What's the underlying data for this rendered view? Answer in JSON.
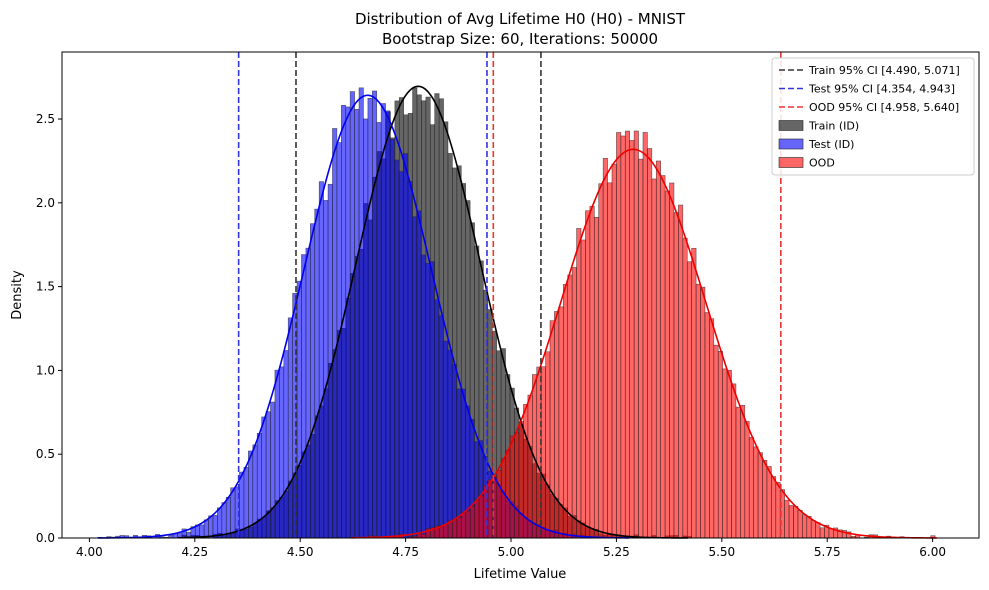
{
  "chart_data": {
    "type": "histogram",
    "title_line1": "Distribution of Avg Lifetime H0 (H0) - MNIST",
    "title_line2": "Bootstrap Size: 60, Iterations: 50000",
    "xlabel": "Lifetime Value",
    "ylabel": "Density",
    "xlim": [
      3.935,
      6.11
    ],
    "ylim": [
      0,
      2.9
    ],
    "xticks": [
      4.0,
      4.25,
      4.5,
      4.75,
      5.0,
      5.25,
      5.5,
      5.75,
      6.0
    ],
    "xtick_labels": [
      "4.00",
      "4.25",
      "4.50",
      "4.75",
      "5.00",
      "5.25",
      "5.50",
      "5.75",
      "6.00"
    ],
    "yticks": [
      0.0,
      0.5,
      1.0,
      1.5,
      2.0,
      2.5
    ],
    "ytick_labels": [
      "0.0",
      "0.5",
      "1.0",
      "1.5",
      "2.0",
      "2.5"
    ],
    "grid": false,
    "legend_position": "top-right",
    "series": [
      {
        "name": "Train (ID)",
        "kind": "histogram+kde",
        "fill_color": "#333333",
        "fill_opacity": 0.75,
        "line_color": "#000000",
        "mean": 4.78,
        "std": 0.148,
        "x_min": 4.21,
        "x_max": 5.42,
        "ci_label": "Train 95% CI [4.490, 5.071]",
        "ci": [
          4.49,
          5.071
        ],
        "ci_color": "#333333"
      },
      {
        "name": "Test (ID)",
        "kind": "histogram+kde",
        "fill_color": "#0000ff",
        "fill_opacity": 0.6,
        "line_color": "#0000ee",
        "mean": 4.66,
        "std": 0.151,
        "x_min": 4.02,
        "x_max": 5.28,
        "ci_label": "Test 95% CI [4.354, 4.943]",
        "ci": [
          4.354,
          4.943
        ],
        "ci_color": "#3333dd"
      },
      {
        "name": "OOD",
        "kind": "histogram+kde",
        "fill_color": "#ff0000",
        "fill_opacity": 0.6,
        "line_color": "#ee0000",
        "mean": 5.29,
        "std": 0.172,
        "x_min": 4.62,
        "x_max": 6.01,
        "ci_label": "OOD 95% CI [4.958, 5.640]",
        "ci": [
          4.958,
          5.64
        ],
        "ci_color": "#ee3333"
      }
    ]
  }
}
